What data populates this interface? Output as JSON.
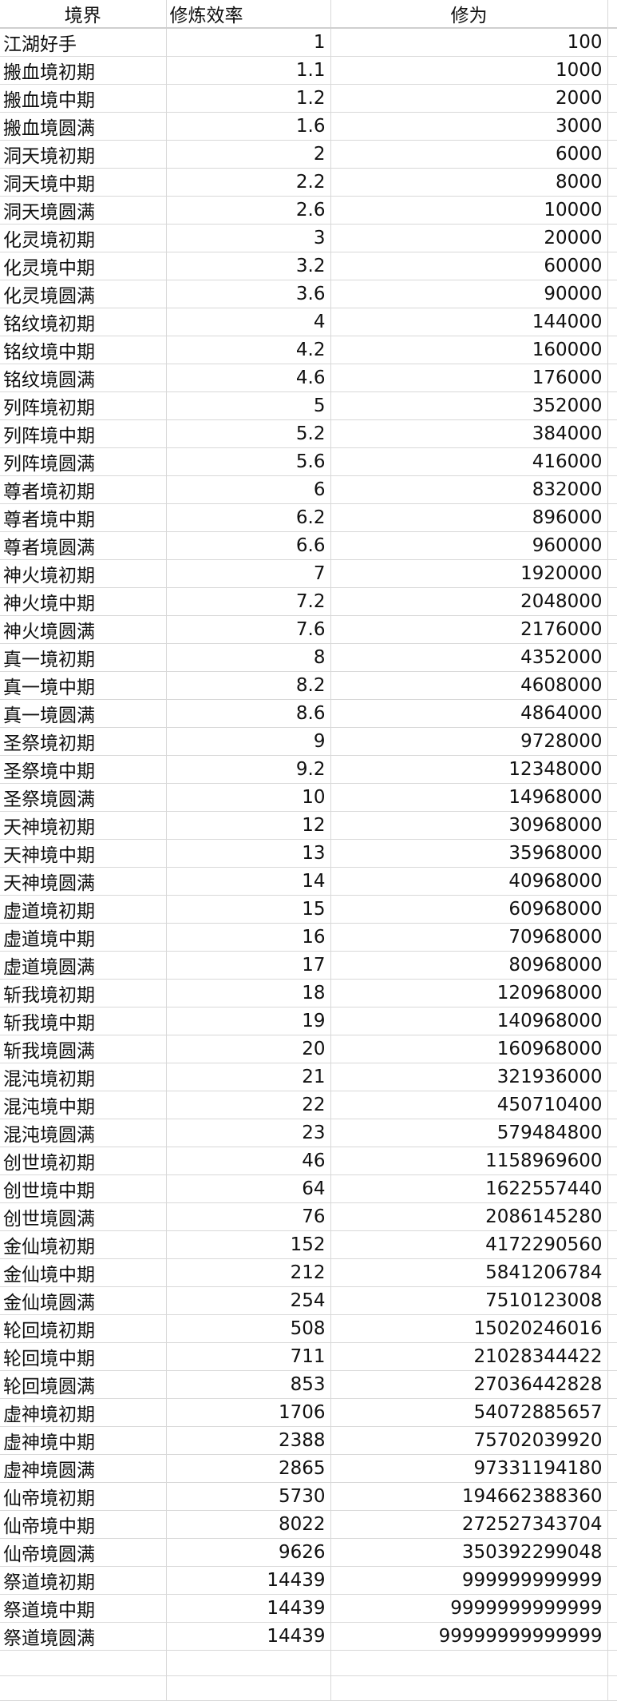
{
  "headers": [
    "境界",
    "修炼效率",
    "修为"
  ],
  "rows": [
    [
      "江湖好手",
      "1",
      "100"
    ],
    [
      "搬血境初期",
      "1.1",
      "1000"
    ],
    [
      "搬血境中期",
      "1.2",
      "2000"
    ],
    [
      "搬血境圆满",
      "1.6",
      "3000"
    ],
    [
      "洞天境初期",
      "2",
      "6000"
    ],
    [
      "洞天境中期",
      "2.2",
      "8000"
    ],
    [
      "洞天境圆满",
      "2.6",
      "10000"
    ],
    [
      "化灵境初期",
      "3",
      "20000"
    ],
    [
      "化灵境中期",
      "3.2",
      "60000"
    ],
    [
      "化灵境圆满",
      "3.6",
      "90000"
    ],
    [
      "铭纹境初期",
      "4",
      "144000"
    ],
    [
      "铭纹境中期",
      "4.2",
      "160000"
    ],
    [
      "铭纹境圆满",
      "4.6",
      "176000"
    ],
    [
      "列阵境初期",
      "5",
      "352000"
    ],
    [
      "列阵境中期",
      "5.2",
      "384000"
    ],
    [
      "列阵境圆满",
      "5.6",
      "416000"
    ],
    [
      "尊者境初期",
      "6",
      "832000"
    ],
    [
      "尊者境中期",
      "6.2",
      "896000"
    ],
    [
      "尊者境圆满",
      "6.6",
      "960000"
    ],
    [
      "神火境初期",
      "7",
      "1920000"
    ],
    [
      "神火境中期",
      "7.2",
      "2048000"
    ],
    [
      "神火境圆满",
      "7.6",
      "2176000"
    ],
    [
      "真一境初期",
      "8",
      "4352000"
    ],
    [
      "真一境中期",
      "8.2",
      "4608000"
    ],
    [
      "真一境圆满",
      "8.6",
      "4864000"
    ],
    [
      "圣祭境初期",
      "9",
      "9728000"
    ],
    [
      "圣祭境中期",
      "9.2",
      "12348000"
    ],
    [
      "圣祭境圆满",
      "10",
      "14968000"
    ],
    [
      "天神境初期",
      "12",
      "30968000"
    ],
    [
      "天神境中期",
      "13",
      "35968000"
    ],
    [
      "天神境圆满",
      "14",
      "40968000"
    ],
    [
      "虚道境初期",
      "15",
      "60968000"
    ],
    [
      "虚道境中期",
      "16",
      "70968000"
    ],
    [
      "虚道境圆满",
      "17",
      "80968000"
    ],
    [
      "斩我境初期",
      "18",
      "120968000"
    ],
    [
      "斩我境中期",
      "19",
      "140968000"
    ],
    [
      "斩我境圆满",
      "20",
      "160968000"
    ],
    [
      "混沌境初期",
      "21",
      "321936000"
    ],
    [
      "混沌境中期",
      "22",
      "450710400"
    ],
    [
      "混沌境圆满",
      "23",
      "579484800"
    ],
    [
      "创世境初期",
      "46",
      "1158969600"
    ],
    [
      "创世境中期",
      "64",
      "1622557440"
    ],
    [
      "创世境圆满",
      "76",
      "2086145280"
    ],
    [
      "金仙境初期",
      "152",
      "4172290560"
    ],
    [
      "金仙境中期",
      "212",
      "5841206784"
    ],
    [
      "金仙境圆满",
      "254",
      "7510123008"
    ],
    [
      "轮回境初期",
      "508",
      "15020246016"
    ],
    [
      "轮回境中期",
      "711",
      "21028344422"
    ],
    [
      "轮回境圆满",
      "853",
      "27036442828"
    ],
    [
      "虚神境初期",
      "1706",
      "54072885657"
    ],
    [
      "虚神境中期",
      "2388",
      "75702039920"
    ],
    [
      "虚神境圆满",
      "2865",
      "97331194180"
    ],
    [
      "仙帝境初期",
      "5730",
      "194662388360"
    ],
    [
      "仙帝境中期",
      "8022",
      "272527343704"
    ],
    [
      "仙帝境圆满",
      "9626",
      "350392299048"
    ],
    [
      "祭道境初期",
      "14439",
      "999999999999"
    ],
    [
      "祭道境中期",
      "14439",
      "9999999999999"
    ],
    [
      "祭道境圆满",
      "14439",
      "99999999999999"
    ]
  ]
}
